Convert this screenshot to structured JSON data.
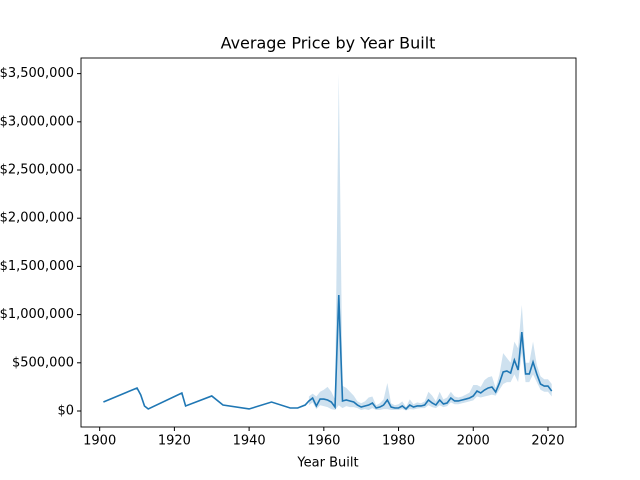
{
  "chart_data": {
    "type": "line",
    "title": "Average Price by Year Built",
    "xlabel": "Year Built",
    "x": [
      1901,
      1910,
      1911,
      1912,
      1913,
      1922,
      1923,
      1930,
      1933,
      1940,
      1946,
      1951,
      1953,
      1955,
      1956,
      1957,
      1958,
      1959,
      1960,
      1961,
      1962,
      1963,
      1964,
      1965,
      1966,
      1967,
      1968,
      1969,
      1970,
      1971,
      1972,
      1973,
      1974,
      1975,
      1976,
      1977,
      1978,
      1979,
      1980,
      1981,
      1982,
      1983,
      1984,
      1985,
      1986,
      1987,
      1988,
      1989,
      1990,
      1991,
      1992,
      1993,
      1994,
      1995,
      1996,
      1997,
      1998,
      1999,
      2000,
      2001,
      2002,
      2003,
      2004,
      2005,
      2006,
      2007,
      2008,
      2009,
      2010,
      2011,
      2012,
      2013,
      2014,
      2015,
      2016,
      2017,
      2018,
      2019,
      2020,
      2021
    ],
    "series": [
      {
        "color": "#1f77b4",
        "band_color": "#1f77b4",
        "values": [
          93000,
          239000,
          166000,
          52000,
          21000,
          187000,
          52000,
          156000,
          62000,
          21000,
          93000,
          31000,
          31000,
          62000,
          104000,
          135000,
          52000,
          124000,
          124000,
          114000,
          93000,
          41000,
          1203000,
          104000,
          114000,
          104000,
          93000,
          62000,
          41000,
          52000,
          62000,
          83000,
          31000,
          41000,
          62000,
          114000,
          41000,
          31000,
          31000,
          52000,
          21000,
          62000,
          41000,
          52000,
          52000,
          62000,
          114000,
          83000,
          62000,
          114000,
          73000,
          83000,
          135000,
          104000,
          104000,
          114000,
          124000,
          135000,
          156000,
          207000,
          187000,
          218000,
          239000,
          249000,
          197000,
          290000,
          405000,
          415000,
          394000,
          529000,
          425000,
          819000,
          384000,
          384000,
          508000,
          384000,
          280000,
          259000,
          259000,
          207000
        ],
        "lower": [
          null,
          null,
          null,
          null,
          null,
          null,
          null,
          null,
          null,
          null,
          null,
          null,
          null,
          null,
          60000,
          90000,
          20000,
          60000,
          50000,
          40000,
          20000,
          10000,
          60000,
          30000,
          50000,
          40000,
          40000,
          30000,
          10000,
          20000,
          10000,
          30000,
          10000,
          10000,
          20000,
          20000,
          10000,
          10000,
          10000,
          20000,
          5000,
          20000,
          15000,
          25000,
          30000,
          30000,
          60000,
          40000,
          30000,
          60000,
          40000,
          50000,
          90000,
          70000,
          70000,
          80000,
          90000,
          100000,
          110000,
          150000,
          140000,
          150000,
          160000,
          170000,
          160000,
          220000,
          280000,
          300000,
          300000,
          380000,
          300000,
          600000,
          300000,
          300000,
          380000,
          300000,
          220000,
          200000,
          200000,
          150000
        ],
        "upper": [
          null,
          null,
          null,
          null,
          null,
          null,
          null,
          null,
          null,
          null,
          null,
          null,
          null,
          null,
          150000,
          180000,
          150000,
          200000,
          220000,
          250000,
          200000,
          120000,
          3500000,
          260000,
          240000,
          200000,
          160000,
          100000,
          80000,
          100000,
          140000,
          150000,
          60000,
          80000,
          120000,
          290000,
          80000,
          60000,
          70000,
          100000,
          40000,
          120000,
          70000,
          90000,
          80000,
          100000,
          200000,
          160000,
          100000,
          200000,
          120000,
          140000,
          200000,
          150000,
          140000,
          150000,
          170000,
          190000,
          270000,
          270000,
          250000,
          320000,
          350000,
          360000,
          240000,
          380000,
          600000,
          550000,
          500000,
          720000,
          650000,
          1100000,
          500000,
          500000,
          720000,
          480000,
          360000,
          330000,
          330000,
          280000
        ]
      }
    ],
    "xlim": [
      1895,
      2027.5
    ],
    "ylim": [
      -166000,
      3662000
    ],
    "xticks": [
      1900,
      1920,
      1940,
      1960,
      1980,
      2000,
      2020
    ],
    "yticks": [
      {
        "value": 0,
        "label": "$0"
      },
      {
        "value": 500000,
        "label": "$500,000"
      },
      {
        "value": 1000000,
        "label": "$1,000,000"
      },
      {
        "value": 1500000,
        "label": "$1,500,000"
      },
      {
        "value": 2000000,
        "label": "$2,000,000"
      },
      {
        "value": 2500000,
        "label": "$2,500,000"
      },
      {
        "value": 3000000,
        "label": "$3,000,000"
      },
      {
        "value": 3500000,
        "label": "$3,500,000"
      }
    ],
    "grid": false
  }
}
